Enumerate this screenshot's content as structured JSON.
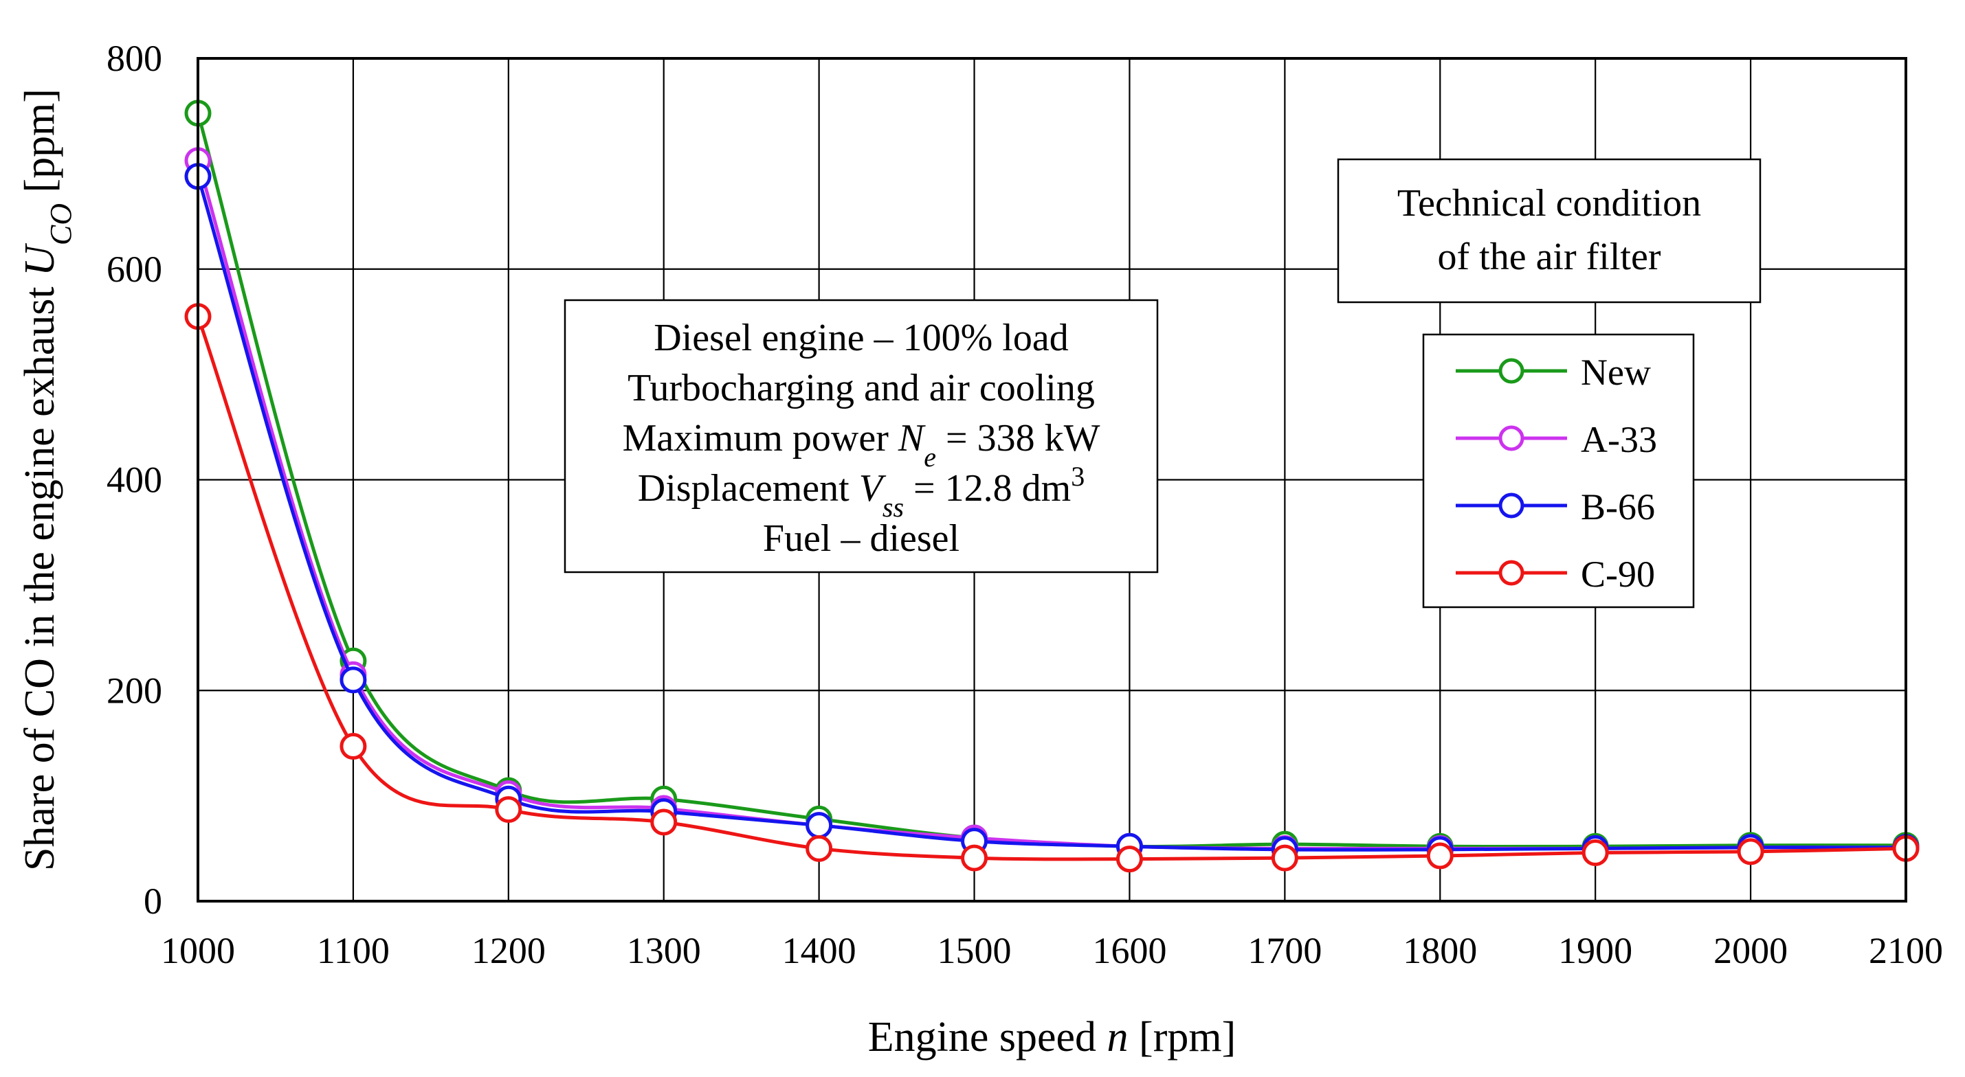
{
  "chart_data": {
    "type": "line",
    "xlabel": "Engine speed n [rpm]",
    "xlabel_parts": [
      "Engine speed ",
      "n",
      " [rpm]"
    ],
    "ylabel": "Share of CO in the engine exhaust U_CO [ppm]",
    "ylabel_parts": [
      "Share of CO in the engine exhaust ",
      "U",
      "CO",
      " [ppm]"
    ],
    "xlim": [
      1000,
      2100
    ],
    "ylim": [
      0,
      800
    ],
    "x_ticks": [
      1000,
      1100,
      1200,
      1300,
      1400,
      1500,
      1600,
      1700,
      1800,
      1900,
      2000,
      2100
    ],
    "y_ticks": [
      0,
      200,
      400,
      600,
      800
    ],
    "grid": true,
    "x": [
      1000,
      1100,
      1200,
      1300,
      1400,
      1500,
      1600,
      1700,
      1800,
      1900,
      2000,
      2100
    ],
    "series": [
      {
        "name": "New",
        "color": "#1a9a1a",
        "values": [
          748,
          228,
          105,
          97,
          78,
          60,
          52,
          54,
          52,
          52,
          53,
          53
        ]
      },
      {
        "name": "A-33",
        "color": "#cc33ee",
        "values": [
          703,
          215,
          102,
          88,
          72,
          60,
          52,
          50,
          50,
          50,
          51,
          51
        ]
      },
      {
        "name": "B-66",
        "color": "#1515ee",
        "values": [
          688,
          210,
          97,
          85,
          72,
          57,
          52,
          49,
          49,
          50,
          51,
          51
        ]
      },
      {
        "name": "C-90",
        "color": "#ee1515",
        "values": [
          555,
          147,
          87,
          75,
          50,
          41,
          40,
          41,
          43,
          46,
          47,
          50
        ]
      }
    ],
    "legend": {
      "title_lines": [
        "Technical condition",
        "of the air filter"
      ],
      "position": "top-right"
    },
    "annotation": {
      "line1": "Diesel engine – 100% load",
      "line2": "Turbocharging and air cooling",
      "line3_parts": [
        "Maximum power ",
        "N",
        "e",
        " = 338 kW"
      ],
      "line4_parts": [
        "Displacement ",
        "V",
        "ss",
        " = 12.8 dm",
        "3"
      ],
      "line5": "Fuel – diesel"
    }
  }
}
